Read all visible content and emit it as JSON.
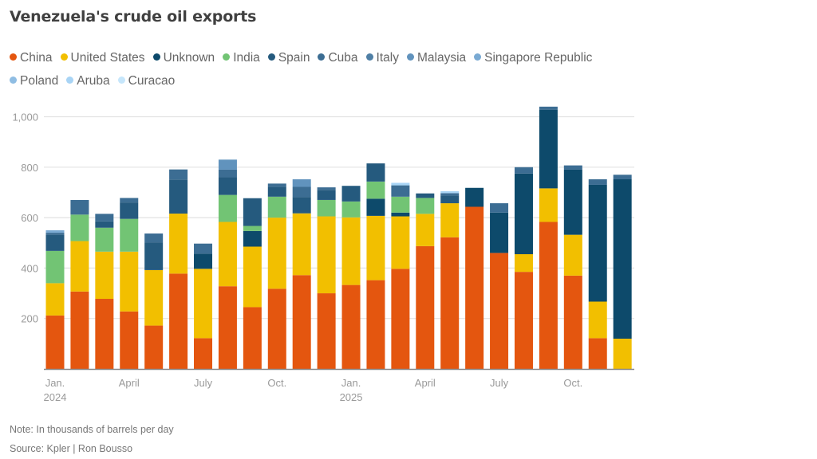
{
  "chart_data": {
    "type": "bar",
    "stacked": true,
    "title": "Venezuela's crude oil exports",
    "xlabel": "",
    "ylabel": "",
    "ylim": [
      0,
      1050
    ],
    "yticks": [
      200,
      400,
      600,
      800,
      1000
    ],
    "ytick_labels": [
      "200",
      "400",
      "600",
      "800",
      "1,000"
    ],
    "grid": true,
    "legend_position": "top-left",
    "categories": [
      "Jan 2024",
      "Feb 2024",
      "Mar 2024",
      "Apr 2024",
      "May 2024",
      "Jun 2024",
      "Jul 2024",
      "Aug 2024",
      "Sep 2024",
      "Oct 2024",
      "Nov 2024",
      "Dec 2024",
      "Jan 2025",
      "Feb 2025",
      "Mar 2025",
      "Apr 2025",
      "May 2025",
      "Jun 2025",
      "Jul 2025",
      "Aug 2025",
      "Sep 2025",
      "Oct 2025",
      "Nov 2025",
      "Dec 2025"
    ],
    "xtick_labels": [
      {
        "index": 0,
        "line1": "Jan.",
        "line2": "2024"
      },
      {
        "index": 3,
        "line1": "April",
        "line2": ""
      },
      {
        "index": 6,
        "line1": "July",
        "line2": ""
      },
      {
        "index": 9,
        "line1": "Oct.",
        "line2": ""
      },
      {
        "index": 12,
        "line1": "Jan.",
        "line2": "2025"
      },
      {
        "index": 15,
        "line1": "April",
        "line2": ""
      },
      {
        "index": 18,
        "line1": "July",
        "line2": ""
      },
      {
        "index": 21,
        "line1": "Oct.",
        "line2": ""
      }
    ],
    "series": [
      {
        "name": "China",
        "color": "#e4560f",
        "values": [
          212,
          307,
          278,
          228,
          172,
          378,
          122,
          328,
          245,
          318,
          372,
          300,
          333,
          352,
          397,
          487,
          522,
          643,
          460,
          385,
          583,
          370,
          122,
          0
        ]
      },
      {
        "name": "United States",
        "color": "#f2bf00",
        "values": [
          128,
          200,
          187,
          237,
          220,
          238,
          275,
          255,
          240,
          282,
          245,
          305,
          268,
          255,
          208,
          128,
          135,
          0,
          0,
          70,
          133,
          162,
          145,
          120
        ]
      },
      {
        "name": "Unknown",
        "color": "#0d4a6b",
        "values": [
          0,
          0,
          0,
          0,
          0,
          0,
          60,
          0,
          62,
          0,
          0,
          0,
          0,
          68,
          15,
          0,
          0,
          75,
          160,
          320,
          312,
          258,
          463,
          632
        ]
      },
      {
        "name": "India",
        "color": "#72c474",
        "values": [
          128,
          105,
          95,
          130,
          0,
          0,
          0,
          107,
          20,
          83,
          0,
          65,
          63,
          68,
          63,
          63,
          0,
          0,
          0,
          0,
          0,
          0,
          0,
          0
        ]
      },
      {
        "name": "Spain",
        "color": "#255a7e",
        "values": [
          64,
          0,
          25,
          65,
          110,
          135,
          0,
          70,
          110,
          40,
          65,
          40,
          62,
          72,
          0,
          18,
          30,
          0,
          0,
          0,
          0,
          0,
          0,
          0
        ]
      },
      {
        "name": "Cuba",
        "color": "#3c6d93",
        "values": [
          8,
          58,
          30,
          18,
          35,
          40,
          40,
          30,
          0,
          12,
          40,
          10,
          0,
          0,
          45,
          0,
          10,
          0,
          37,
          25,
          12,
          17,
          22,
          18
        ]
      },
      {
        "name": "Italy",
        "color": "#4f7fa5",
        "values": [
          0,
          0,
          0,
          0,
          0,
          0,
          0,
          0,
          0,
          0,
          0,
          0,
          0,
          0,
          0,
          0,
          0,
          0,
          0,
          0,
          0,
          0,
          0,
          0
        ]
      },
      {
        "name": "Malaysia",
        "color": "#6193bd",
        "values": [
          0,
          0,
          0,
          0,
          0,
          0,
          0,
          40,
          0,
          0,
          30,
          0,
          0,
          0,
          0,
          0,
          0,
          0,
          0,
          0,
          0,
          0,
          0,
          0
        ]
      },
      {
        "name": "Singapore Republic",
        "color": "#7aaad3",
        "values": [
          10,
          0,
          0,
          0,
          0,
          0,
          0,
          0,
          0,
          0,
          0,
          0,
          0,
          0,
          0,
          0,
          0,
          0,
          0,
          0,
          0,
          0,
          0,
          0
        ]
      },
      {
        "name": "Poland",
        "color": "#8fbde3",
        "values": [
          0,
          0,
          0,
          0,
          0,
          0,
          0,
          0,
          0,
          0,
          0,
          0,
          0,
          0,
          0,
          0,
          0,
          0,
          0,
          0,
          0,
          0,
          0,
          0
        ]
      },
      {
        "name": "Aruba",
        "color": "#a8d4f5",
        "values": [
          0,
          0,
          0,
          0,
          0,
          0,
          0,
          0,
          0,
          0,
          0,
          0,
          0,
          0,
          10,
          0,
          8,
          0,
          0,
          0,
          0,
          0,
          0,
          0
        ]
      },
      {
        "name": "Curacao",
        "color": "#c6e6fb",
        "values": [
          0,
          0,
          0,
          0,
          0,
          0,
          0,
          0,
          0,
          0,
          0,
          0,
          0,
          0,
          0,
          0,
          0,
          0,
          0,
          0,
          0,
          0,
          0,
          0
        ]
      }
    ],
    "note": "Note: In thousands of barrels per day",
    "source": "Source: Kpler | Ron Bousso"
  }
}
